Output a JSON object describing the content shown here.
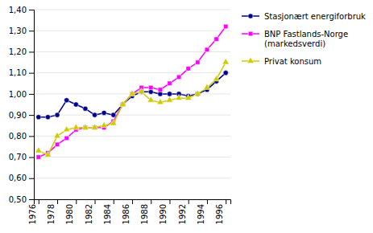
{
  "chart_data": {
    "type": "line",
    "x": [
      1976,
      1977,
      1978,
      1979,
      1980,
      1981,
      1982,
      1983,
      1984,
      1985,
      1986,
      1987,
      1988,
      1989,
      1990,
      1991,
      1992,
      1993,
      1994,
      1995,
      1996
    ],
    "series": [
      {
        "name": "Stasjonært energiforbruk",
        "color": "#00008B",
        "marker": "circle",
        "values": [
          0.89,
          0.89,
          0.9,
          0.97,
          0.95,
          0.93,
          0.9,
          0.91,
          0.9,
          0.95,
          0.99,
          1.01,
          1.01,
          1.0,
          1.0,
          1.0,
          0.99,
          1.0,
          1.02,
          1.06,
          1.1
        ]
      },
      {
        "name": "BNP Fastlands-Norge\n(markedsverdi)",
        "color": "#FF00FF",
        "marker": "square",
        "values": [
          0.7,
          0.72,
          0.76,
          0.79,
          0.83,
          0.84,
          0.84,
          0.84,
          0.87,
          0.95,
          1.0,
          1.03,
          1.03,
          1.02,
          1.05,
          1.08,
          1.12,
          1.15,
          1.21,
          1.26,
          1.32
        ]
      },
      {
        "name": "Privat konsum",
        "color": "#CCCC00",
        "marker": "triangle",
        "values": [
          0.73,
          0.71,
          0.8,
          0.83,
          0.84,
          0.84,
          0.84,
          0.85,
          0.86,
          0.95,
          1.0,
          1.01,
          0.97,
          0.96,
          0.97,
          0.98,
          0.98,
          1.0,
          1.03,
          1.07,
          1.15
        ]
      }
    ],
    "xlim": [
      1975.5,
      1996.5
    ],
    "xticks": [
      1976,
      1978,
      1980,
      1982,
      1984,
      1986,
      1988,
      1990,
      1992,
      1994,
      1996
    ],
    "ylim": [
      0.5,
      1.4
    ],
    "yticks": [
      {
        "value": 0.5,
        "label": "0,50"
      },
      {
        "value": 0.6,
        "label": "0,60"
      },
      {
        "value": 0.7,
        "label": "0,70"
      },
      {
        "value": 0.8,
        "label": "0,80"
      },
      {
        "value": 0.9,
        "label": "0,90"
      },
      {
        "value": 1.0,
        "label": "1,00"
      },
      {
        "value": 1.1,
        "label": "1,10"
      },
      {
        "value": 1.2,
        "label": "1,20"
      },
      {
        "value": 1.3,
        "label": "1,30"
      },
      {
        "value": 1.4,
        "label": "1,40"
      }
    ],
    "grid": true,
    "legend": "right"
  }
}
